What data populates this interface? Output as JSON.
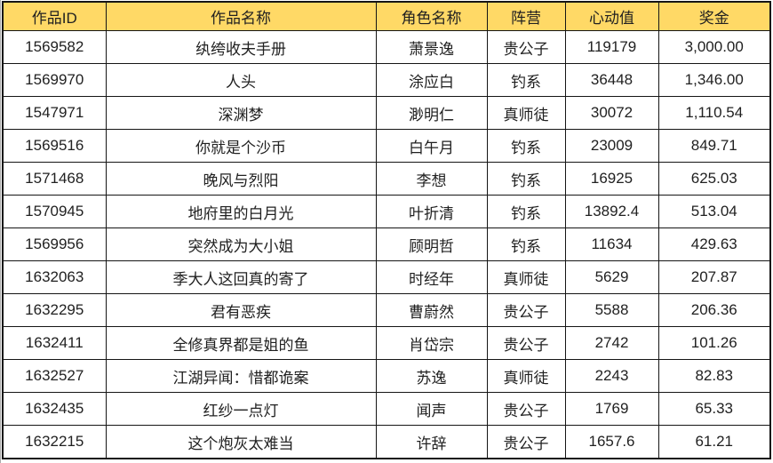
{
  "chart_data": {
    "type": "table",
    "columns": [
      {
        "key": "work-id",
        "label": "作品ID"
      },
      {
        "key": "work-name",
        "label": "作品名称"
      },
      {
        "key": "character",
        "label": "角色名称"
      },
      {
        "key": "faction",
        "label": "阵营"
      },
      {
        "key": "heart-value",
        "label": "心动值"
      },
      {
        "key": "bonus",
        "label": "奖金"
      }
    ],
    "rows": [
      [
        "1569582",
        "纨绔收夫手册",
        "萧景逸",
        "贵公子",
        "119179",
        "3,000.00"
      ],
      [
        "1569970",
        "人头",
        "涂应白",
        "钓系",
        "36448",
        "1,346.00"
      ],
      [
        "1547971",
        "深渊梦",
        "渺明仁",
        "真师徒",
        "30072",
        "1,110.54"
      ],
      [
        "1569516",
        "你就是个沙币",
        "白午月",
        "钓系",
        "23009",
        "849.71"
      ],
      [
        "1571468",
        "晚风与烈阳",
        "李想",
        "钓系",
        "16925",
        "625.03"
      ],
      [
        "1570945",
        "地府里的白月光",
        "叶折清",
        "钓系",
        "13892.4",
        "513.04"
      ],
      [
        "1569956",
        "突然成为大小姐",
        "顾明哲",
        "钓系",
        "11634",
        "429.63"
      ],
      [
        "1632063",
        "季大人这回真的寄了",
        "时经年",
        "真师徒",
        "5629",
        "207.87"
      ],
      [
        "1632295",
        "君有恶疾",
        "曹蔚然",
        "贵公子",
        "5588",
        "206.36"
      ],
      [
        "1632411",
        "全修真界都是姐的鱼",
        "肖岱宗",
        "贵公子",
        "2742",
        "101.26"
      ],
      [
        "1632527",
        "江湖异闻：惜都诡案",
        "苏逸",
        "真师徒",
        "2243",
        "82.83"
      ],
      [
        "1632435",
        "红纱一点灯",
        "闻声",
        "贵公子",
        "1769",
        "65.33"
      ],
      [
        "1632215",
        "这个炮灰太难当",
        "许辞",
        "贵公子",
        "1657.6",
        "61.21"
      ]
    ]
  },
  "colors": {
    "header_bg": "#FFD966",
    "grid_border": "#151515",
    "text": "#212121",
    "page_bg": "#FFFFFF"
  }
}
